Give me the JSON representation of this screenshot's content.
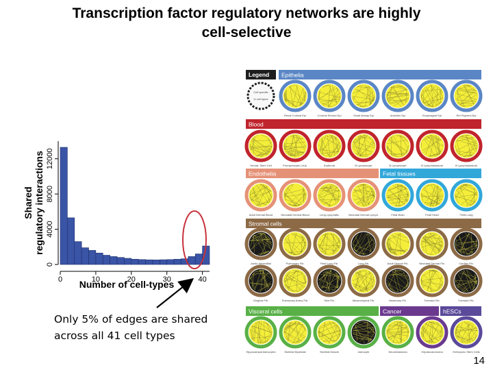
{
  "title": {
    "line1": "Transcription factor regulatory networks are highly",
    "line2": "cell-selective"
  },
  "annotation": {
    "line1": "Only 5% of edges are shared",
    "line2": "across all 41 cell types"
  },
  "page_number": "14",
  "chart_data": {
    "type": "bar",
    "xlabel": "Number of cell-types",
    "ylabel_line1": "Shared",
    "ylabel_line2": "regulatory interactions",
    "x_ticks": [
      "0",
      "10",
      "20",
      "30",
      "40"
    ],
    "y_ticks": [
      "0",
      "4000",
      "8000",
      "12000"
    ],
    "xlim": [
      0,
      42
    ],
    "ylim": [
      0,
      14000
    ],
    "bin_width": 2,
    "x": [
      0,
      2,
      4,
      6,
      8,
      10,
      12,
      14,
      16,
      18,
      20,
      22,
      24,
      26,
      28,
      30,
      32,
      34,
      36,
      38,
      40
    ],
    "values": [
      13300,
      5300,
      2600,
      1900,
      1600,
      1300,
      1050,
      900,
      800,
      700,
      600,
      560,
      530,
      520,
      540,
      560,
      600,
      650,
      900,
      1200,
      2100
    ],
    "bar_color": "#3a54a6",
    "highlight_color": "#c8313c"
  },
  "network_panel": {
    "legend": {
      "header": "Legend",
      "caption1": "Cell specific",
      "caption2": "In cell types"
    },
    "groups": [
      {
        "name": "Epithelia",
        "color": "#5a86c5",
        "ring": "#5a86c5",
        "cells": [
          "Renal Cortical Epi",
          "Corneal Stroma Epi",
          "Small Airway Epi",
          "Amniotic Epi",
          "Esophageal Epi",
          "Ret Pigment Epi"
        ]
      },
      {
        "name": "Blood",
        "color": "#c0242d",
        "ring": "#c0242d",
        "cells": [
          "Hemat. Stem Cell",
          "Promyelocytic Leuk.",
          "Erythroid",
          "B Lymphocyte",
          "B Lymphocyte",
          "B Lymphoblastoid",
          "B Lymphoblastoid"
        ]
      },
      {
        "name": "Endothelia",
        "color": "#e59177",
        "ring": "#e59177",
        "cells": [
          "Adult Dermal Blood",
          "Neonatal Dermal Blood",
          "Lung Lymphatic",
          "Neonatal Dermal Lymph."
        ]
      },
      {
        "name": "Fetal tissues",
        "color": "#32a7d9",
        "ring": "#32a7d9",
        "cells": [
          "Fetal Brain",
          "Fetal Heart",
          "Fetal Lung"
        ]
      },
      {
        "name": "Stromal cells",
        "color": "#8c6a46",
        "ring": "#8c6a46",
        "cells": [
          "Aortic Adventitial",
          "Pulmonary Fib.",
          "Fetal Lung Fib.",
          "Lung Fib.",
          "Adult Dermal Fib.",
          "Neonatal Dermal Fib.",
          "Cardiac Fib.",
          "Gingival Fib.",
          "Pulmonary Artery Fib.",
          "Skin Fib.",
          "Mesenchymal Fib.",
          "Mammary Fib.",
          "Foreskin Fib.",
          "Foreskin Fib."
        ]
      },
      {
        "name": "Visceral cells",
        "color": "#58b046",
        "ring": "#58b046",
        "cells": [
          "Hippocampal Astrocytes",
          "Skeletal Myoblast",
          "Skeletal Muscle",
          "Astrocyte",
          "Neuroblastoma"
        ]
      },
      {
        "name": "Cancer",
        "color": "#6b3a8f",
        "ring": "#6b3a8f",
        "cells": [
          "Hepatocarcinoma"
        ]
      },
      {
        "name": "hESCs",
        "color": "#5b4a9a",
        "ring": "#5b4a9a",
        "cells": [
          "Embryonic Stem Cells"
        ]
      }
    ]
  }
}
